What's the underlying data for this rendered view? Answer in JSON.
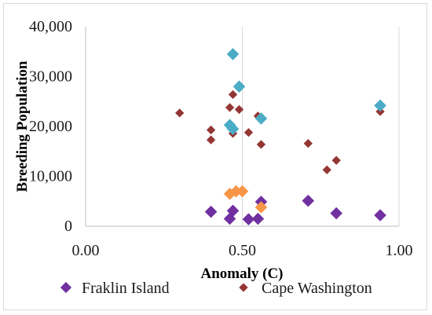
{
  "chart_data": {
    "type": "scatter",
    "title": "",
    "xlabel": "Anomaly (C)",
    "ylabel": "Breeding Population",
    "xlim": [
      0,
      1.0
    ],
    "ylim": [
      0,
      40000
    ],
    "x_ticks": [
      "0.00",
      "0.50",
      "1.00"
    ],
    "y_ticks": [
      "0",
      "10,000",
      "20,000",
      "30,000",
      "40,000"
    ],
    "grid": "vertical",
    "legend_position": "bottom",
    "series": [
      {
        "name": "Fraklin Island",
        "color": "#7030a0",
        "marker": "diamond",
        "points": [
          [
            0.4,
            2900
          ],
          [
            0.46,
            1500
          ],
          [
            0.47,
            3100
          ],
          [
            0.52,
            1400
          ],
          [
            0.55,
            1500
          ],
          [
            0.56,
            4900
          ],
          [
            0.71,
            5100
          ],
          [
            0.8,
            2600
          ],
          [
            0.94,
            2200
          ]
        ]
      },
      {
        "name": "Cape Washington",
        "color": "#943634",
        "marker": "diamond-small",
        "points": [
          [
            0.3,
            22700
          ],
          [
            0.4,
            19300
          ],
          [
            0.4,
            17300
          ],
          [
            0.46,
            23800
          ],
          [
            0.47,
            26400
          ],
          [
            0.47,
            18600
          ],
          [
            0.49,
            23400
          ],
          [
            0.52,
            18800
          ],
          [
            0.55,
            22100
          ],
          [
            0.56,
            16400
          ],
          [
            0.71,
            16600
          ],
          [
            0.77,
            11300
          ],
          [
            0.8,
            13200
          ],
          [
            0.94,
            23000
          ]
        ]
      },
      {
        "name": "",
        "color": "#4bacc6",
        "marker": "diamond",
        "points": [
          [
            0.47,
            34500
          ],
          [
            0.49,
            28000
          ],
          [
            0.46,
            20300
          ],
          [
            0.47,
            19500
          ],
          [
            0.56,
            21600
          ],
          [
            0.94,
            24200
          ]
        ]
      },
      {
        "name": "",
        "color": "#f79646",
        "marker": "diamond",
        "points": [
          [
            0.46,
            6500
          ],
          [
            0.48,
            7000
          ],
          [
            0.5,
            7000
          ],
          [
            0.56,
            3800
          ]
        ]
      }
    ]
  }
}
